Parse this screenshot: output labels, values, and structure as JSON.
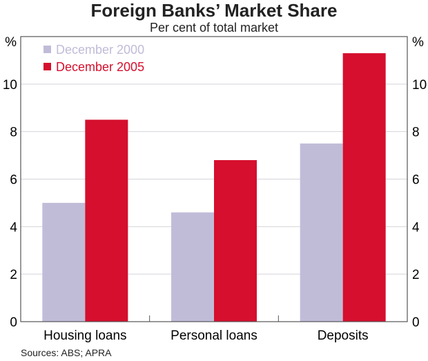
{
  "chart_data": {
    "type": "bar",
    "title": "Foreign Banks’ Market Share",
    "subtitle": "Per cent of total market",
    "ylabel_left": "%",
    "ylabel_right": "%",
    "categories": [
      "Housing loans",
      "Personal loans",
      "Deposits"
    ],
    "series": [
      {
        "name": "December 2000",
        "color": "#c0bcd8",
        "values": [
          5.0,
          4.6,
          7.5
        ]
      },
      {
        "name": "December 2005",
        "color": "#d50f2d",
        "values": [
          8.5,
          6.8,
          11.3
        ]
      }
    ],
    "ylim": [
      0,
      12
    ],
    "yticks": [
      0,
      2,
      4,
      6,
      8,
      10
    ],
    "grid": true,
    "legend_position": "top-left",
    "source": "Sources: ABS; APRA"
  }
}
